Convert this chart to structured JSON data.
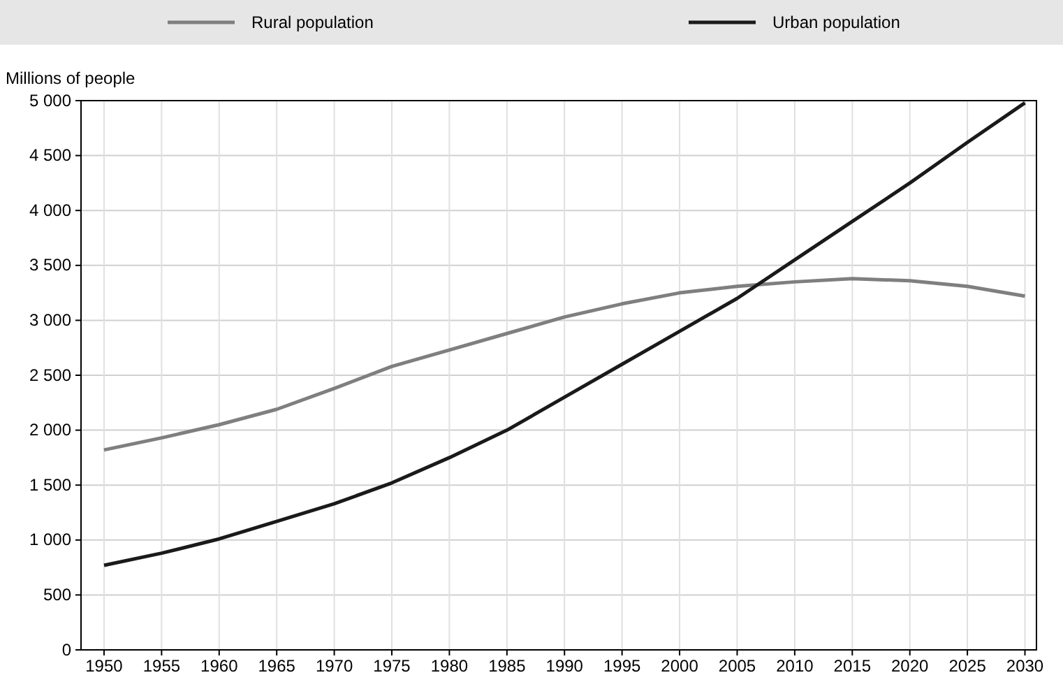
{
  "chart_data": {
    "type": "line",
    "ylabel": "Millions of people",
    "x": [
      1950,
      1955,
      1960,
      1965,
      1970,
      1975,
      1980,
      1985,
      1990,
      1995,
      2000,
      2005,
      2010,
      2015,
      2020,
      2025,
      2030
    ],
    "series": [
      {
        "name": "Rural population",
        "color": "#7f7f7f",
        "values": [
          1820,
          1930,
          2050,
          2190,
          2380,
          2580,
          2730,
          2880,
          3030,
          3150,
          3250,
          3310,
          3350,
          3380,
          3360,
          3310,
          3220
        ]
      },
      {
        "name": "Urban population",
        "color": "#1a1a1a",
        "values": [
          770,
          880,
          1010,
          1170,
          1330,
          1520,
          1750,
          2000,
          2300,
          2600,
          2900,
          3200,
          3550,
          3900,
          4250,
          4620,
          4980
        ]
      }
    ],
    "xlim": [
      1948,
      2031
    ],
    "xticks": [
      1950,
      1955,
      1960,
      1965,
      1970,
      1975,
      1980,
      1985,
      1990,
      1995,
      2000,
      2005,
      2010,
      2015,
      2020,
      2025,
      2030
    ],
    "ylim": [
      0,
      5000
    ],
    "yticks": [
      0,
      500,
      {
        "value": 1000,
        "label": "1 000"
      },
      {
        "value": 1500,
        "label": "1 500"
      },
      {
        "value": 2000,
        "label": "2 000"
      },
      {
        "value": 2500,
        "label": "2 500"
      },
      {
        "value": 3000,
        "label": "3 000"
      },
      {
        "value": 3500,
        "label": "3 500"
      },
      {
        "value": 4000,
        "label": "4 000"
      },
      {
        "value": 4500,
        "label": "4 500"
      },
      {
        "value": 5000,
        "label": "5 000"
      }
    ],
    "grid": true,
    "legend": "top",
    "marker": "none",
    "line_style": "solid"
  }
}
